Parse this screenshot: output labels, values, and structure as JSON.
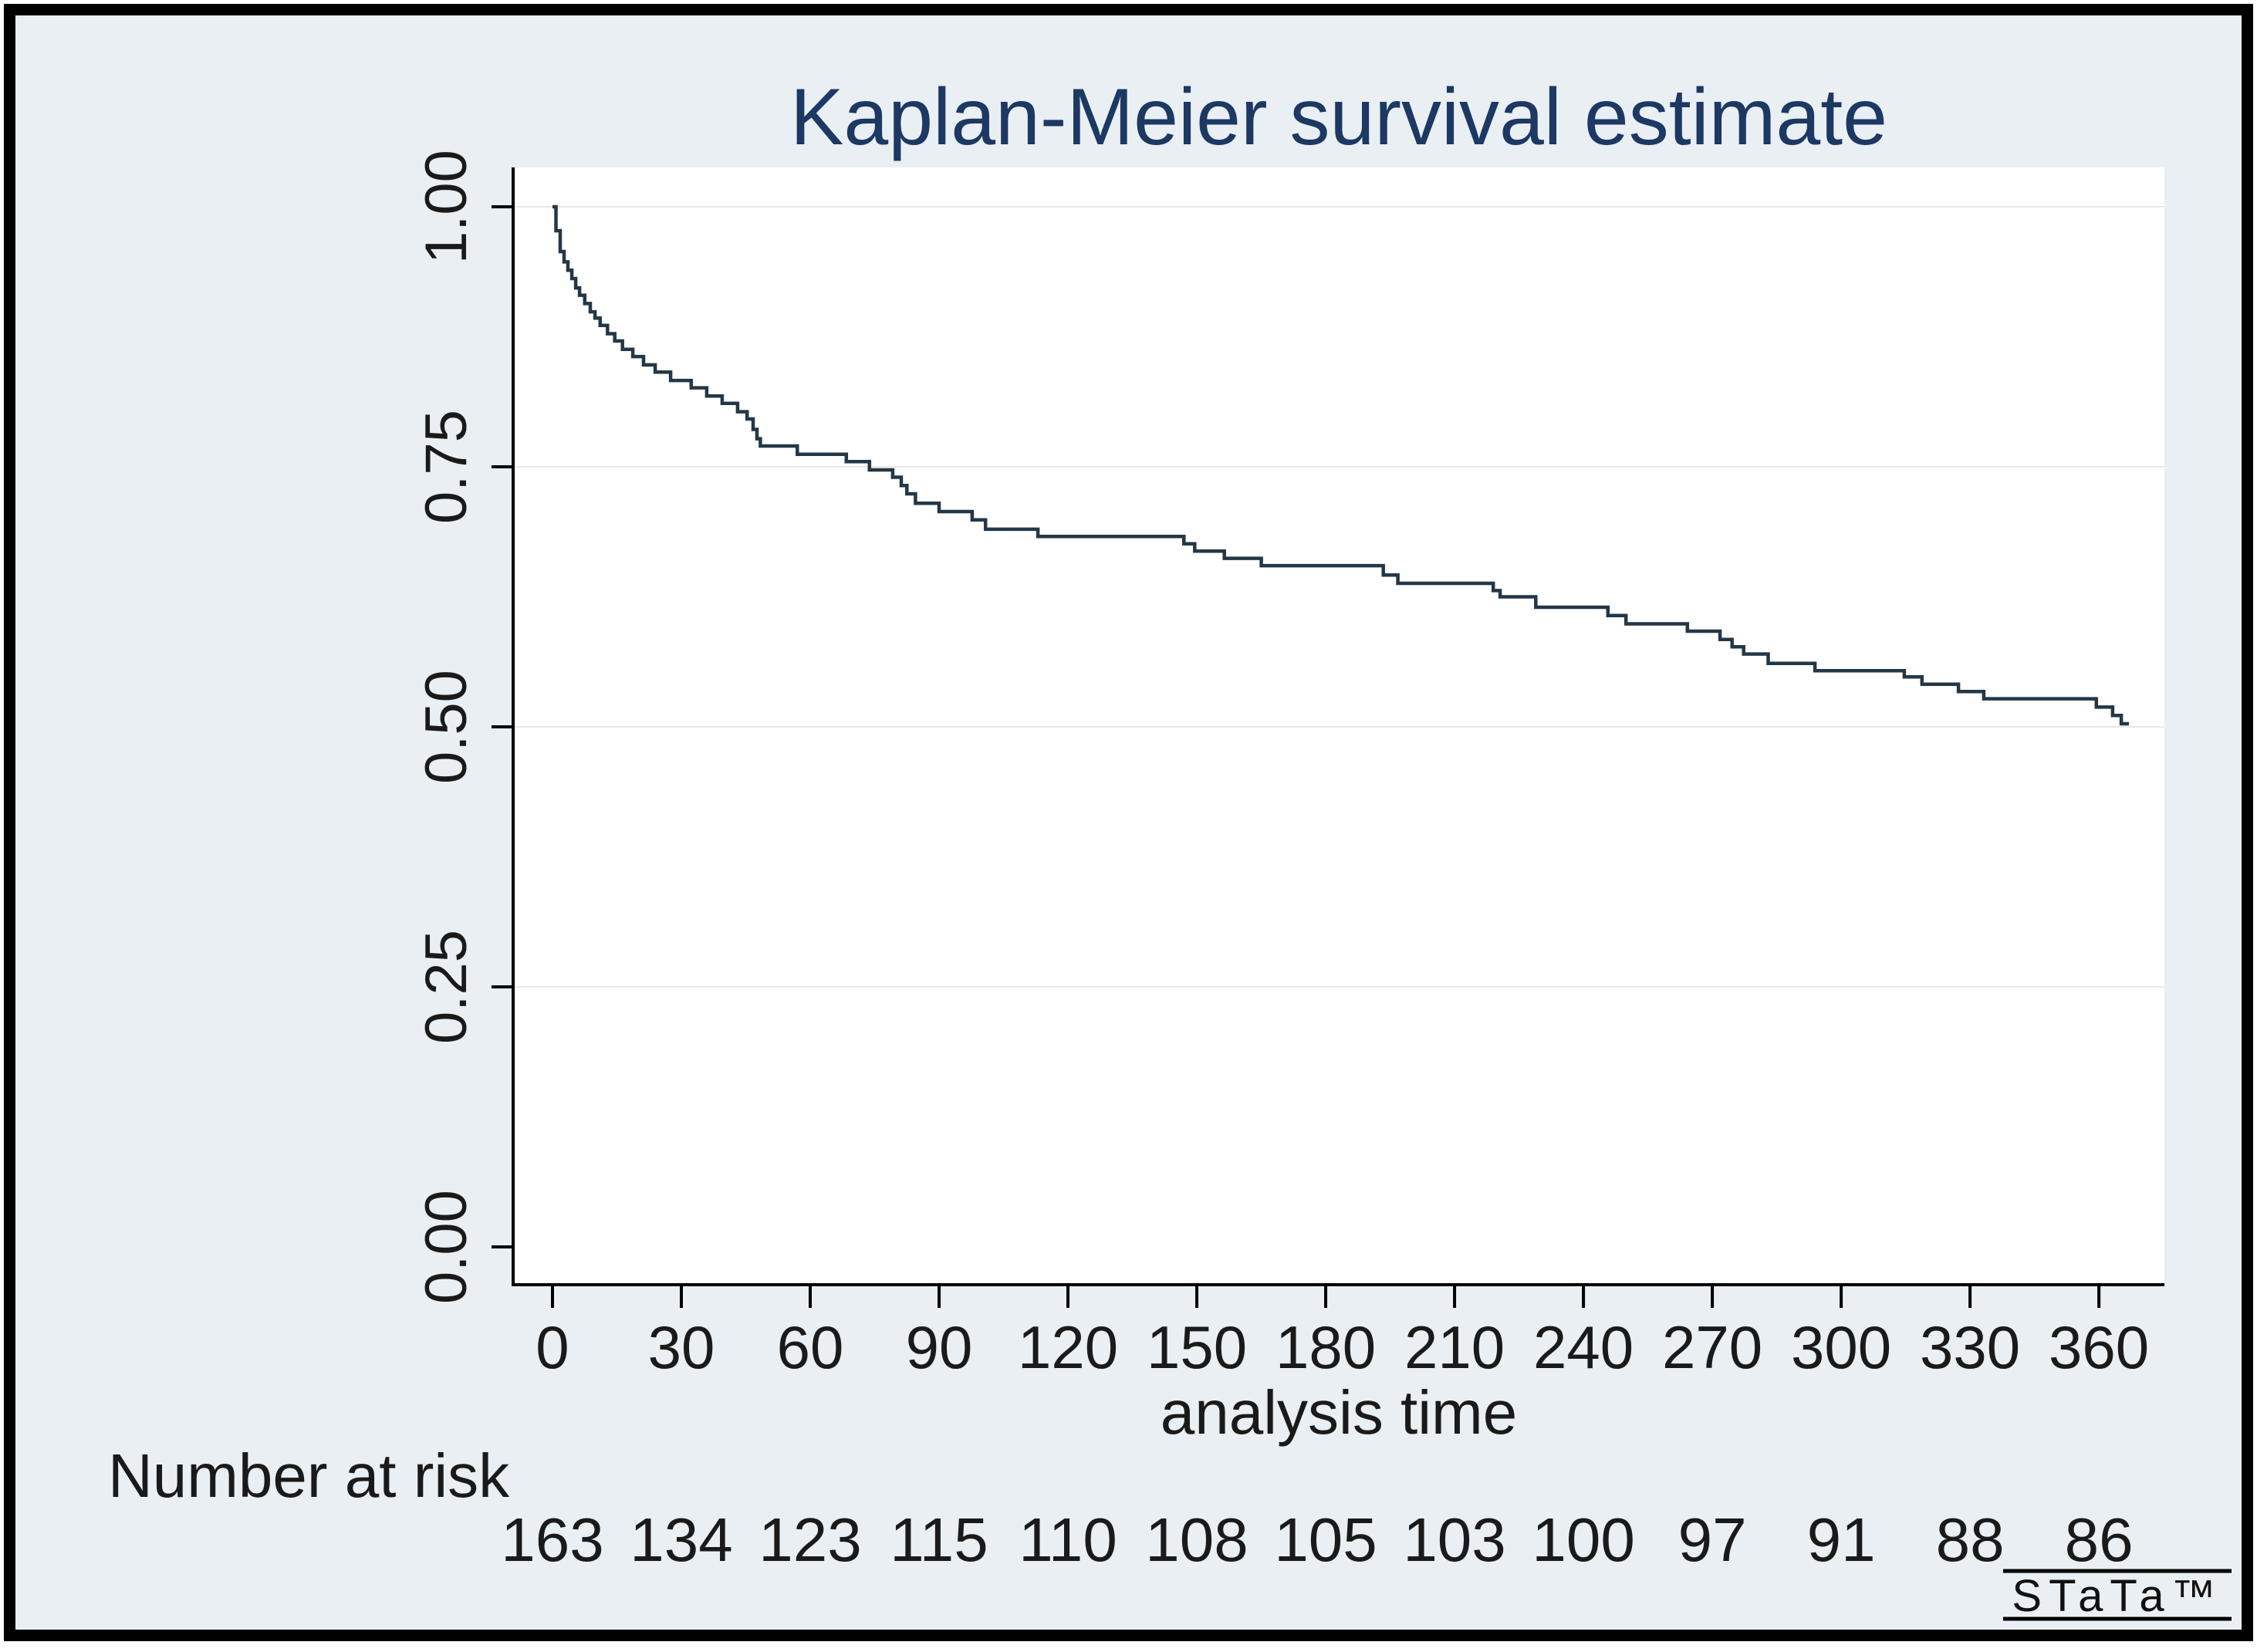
{
  "title": "Kaplan-Meier survival estimate",
  "x_axis": {
    "label": "analysis time",
    "ticks": [
      0,
      30,
      60,
      90,
      120,
      150,
      180,
      210,
      240,
      270,
      300,
      330,
      360
    ]
  },
  "y_axis": {
    "tick_labels": [
      "0.00",
      "0.25",
      "0.50",
      "0.75",
      "1.00"
    ],
    "ticks": [
      0.0,
      0.25,
      0.5,
      0.75,
      1.0
    ]
  },
  "risk_table": {
    "label": "Number at risk"
  },
  "watermark": "STaTa™",
  "colors": {
    "frame": "#000000",
    "background": "#e9eff2",
    "plot_background": "#ffffff",
    "gridline": "#e6e8e8",
    "axis": "#000000",
    "text": "#1a1a1a",
    "title": "#1c3863",
    "curve": "#243746"
  },
  "chart_data": {
    "type": "line",
    "line_style": "step-after",
    "title": "Kaplan-Meier survival estimate",
    "xlabel": "analysis time",
    "ylabel": "",
    "xlim": [
      0,
      375
    ],
    "ylim": [
      0.0,
      1.0
    ],
    "x_ticks": [
      0,
      30,
      60,
      90,
      120,
      150,
      180,
      210,
      240,
      270,
      300,
      330,
      360
    ],
    "y_ticks": [
      0.0,
      0.25,
      0.5,
      0.75,
      1.0
    ],
    "y_tick_labels": [
      "0.00",
      "0.25",
      "0.50",
      "0.75",
      "1.00"
    ],
    "gridlines": {
      "horizontal": [
        0.25,
        0.5,
        0.75,
        1.0
      ],
      "vertical": []
    },
    "legend": "none",
    "series": [
      {
        "name": "Kaplan-Meier survival estimate",
        "color": "#243746",
        "end_time": 367,
        "steps": [
          [
            0,
            1.0
          ],
          [
            0.8,
            0.977
          ],
          [
            1.8,
            0.957
          ],
          [
            2.7,
            0.947
          ],
          [
            3.6,
            0.939
          ],
          [
            4.5,
            0.931
          ],
          [
            5.4,
            0.922
          ],
          [
            6.3,
            0.915
          ],
          [
            7.5,
            0.907
          ],
          [
            8.8,
            0.899
          ],
          [
            9.9,
            0.893
          ],
          [
            11.1,
            0.886
          ],
          [
            12.8,
            0.878
          ],
          [
            14.5,
            0.871
          ],
          [
            16.3,
            0.863
          ],
          [
            18.7,
            0.856
          ],
          [
            21.2,
            0.848
          ],
          [
            23.9,
            0.841
          ],
          [
            27.5,
            0.833
          ],
          [
            32.3,
            0.826
          ],
          [
            35.9,
            0.818
          ],
          [
            39.5,
            0.811
          ],
          [
            43.1,
            0.803
          ],
          [
            45.3,
            0.796
          ],
          [
            46.7,
            0.786
          ],
          [
            47.6,
            0.777
          ],
          [
            48.4,
            0.77
          ],
          [
            57.0,
            0.762
          ],
          [
            68.4,
            0.755
          ],
          [
            73.8,
            0.747
          ],
          [
            79.2,
            0.74
          ],
          [
            81.2,
            0.732
          ],
          [
            82.5,
            0.724
          ],
          [
            84.5,
            0.715
          ],
          [
            90.0,
            0.707
          ],
          [
            97.7,
            0.699
          ],
          [
            100.8,
            0.69
          ],
          [
            113.0,
            0.683
          ],
          [
            147.0,
            0.676
          ],
          [
            149.5,
            0.669
          ],
          [
            156.4,
            0.662
          ],
          [
            165.0,
            0.655
          ],
          [
            193.4,
            0.646
          ],
          [
            196.8,
            0.638
          ],
          [
            219.0,
            0.631
          ],
          [
            220.6,
            0.625
          ],
          [
            228.9,
            0.615
          ],
          [
            245.7,
            0.607
          ],
          [
            249.9,
            0.599
          ],
          [
            264.2,
            0.592
          ],
          [
            271.8,
            0.584
          ],
          [
            274.6,
            0.577
          ],
          [
            277.3,
            0.57
          ],
          [
            283.0,
            0.561
          ],
          [
            293.9,
            0.554
          ],
          [
            314.7,
            0.548
          ],
          [
            318.8,
            0.541
          ],
          [
            327.3,
            0.534
          ],
          [
            333.2,
            0.527
          ],
          [
            359.4,
            0.519
          ],
          [
            363.2,
            0.511
          ],
          [
            365.2,
            0.503
          ]
        ]
      }
    ],
    "number_at_risk": {
      "label": "Number at risk",
      "times": [
        0,
        30,
        60,
        90,
        120,
        150,
        180,
        210,
        240,
        270,
        300,
        330,
        360
      ],
      "values": [
        163,
        134,
        123,
        115,
        110,
        108,
        105,
        103,
        100,
        97,
        91,
        88,
        86
      ]
    }
  }
}
